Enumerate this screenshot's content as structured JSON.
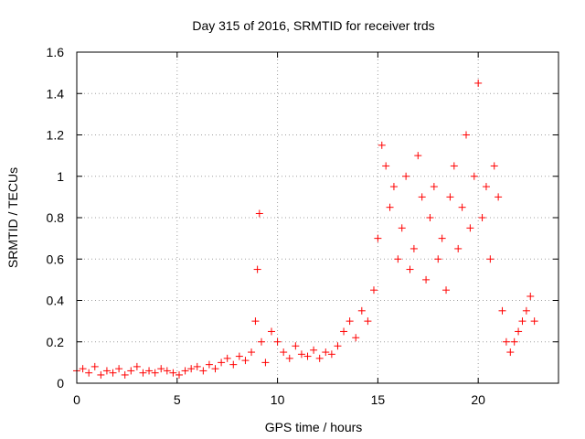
{
  "chart_data": {
    "type": "scatter",
    "title": "Day 315 of 2016, SRMTID for receiver trds",
    "xlabel": "GPS time / hours",
    "ylabel": "SRMTID / TECUs",
    "xlim": [
      0,
      24
    ],
    "ylim": [
      0,
      1.6
    ],
    "xticks": [
      0,
      5,
      10,
      15,
      20
    ],
    "yticks": [
      0,
      0.2,
      0.4,
      0.6,
      0.8,
      1,
      1.2,
      1.4,
      1.6
    ],
    "xtick_labels": [
      "0",
      "5",
      "10",
      "15",
      "20"
    ],
    "ytick_labels": [
      "0",
      "0.2",
      "0.4",
      "0.6",
      "0.8",
      "1",
      "1.2",
      "1.4",
      "1.6"
    ],
    "grid": true,
    "marker": "+",
    "color": "#ff0000",
    "series": [
      {
        "name": "SRMTID",
        "x": [
          0.0,
          0.3,
          0.6,
          0.9,
          1.2,
          1.5,
          1.8,
          2.1,
          2.4,
          2.7,
          3.0,
          3.3,
          3.6,
          3.9,
          4.2,
          4.5,
          4.8,
          5.1,
          5.4,
          5.7,
          6.0,
          6.3,
          6.6,
          6.9,
          7.2,
          7.5,
          7.8,
          8.1,
          8.4,
          8.7,
          8.9,
          9.0,
          9.1,
          9.2,
          9.4,
          9.7,
          10.0,
          10.3,
          10.6,
          10.9,
          11.2,
          11.5,
          11.8,
          12.1,
          12.4,
          12.7,
          13.0,
          13.3,
          13.6,
          13.9,
          14.2,
          14.5,
          14.8,
          15.0,
          15.2,
          15.4,
          15.6,
          15.8,
          16.0,
          16.2,
          16.4,
          16.6,
          16.8,
          17.0,
          17.2,
          17.4,
          17.6,
          17.8,
          18.0,
          18.2,
          18.4,
          18.6,
          18.8,
          19.0,
          19.2,
          19.4,
          19.6,
          19.8,
          20.0,
          20.2,
          20.4,
          20.6,
          20.8,
          21.0,
          21.2,
          21.4,
          21.6,
          21.8,
          22.0,
          22.2,
          22.4,
          22.6,
          22.8
        ],
        "y": [
          0.06,
          0.07,
          0.05,
          0.08,
          0.04,
          0.06,
          0.05,
          0.07,
          0.04,
          0.06,
          0.08,
          0.05,
          0.06,
          0.05,
          0.07,
          0.06,
          0.05,
          0.04,
          0.06,
          0.07,
          0.08,
          0.06,
          0.09,
          0.07,
          0.1,
          0.12,
          0.09,
          0.13,
          0.11,
          0.15,
          0.3,
          0.55,
          0.82,
          0.2,
          0.1,
          0.25,
          0.2,
          0.15,
          0.12,
          0.18,
          0.14,
          0.13,
          0.16,
          0.12,
          0.15,
          0.14,
          0.18,
          0.25,
          0.3,
          0.22,
          0.35,
          0.3,
          0.45,
          0.7,
          1.15,
          1.05,
          0.85,
          0.95,
          0.6,
          0.75,
          1.0,
          0.55,
          0.65,
          1.1,
          0.9,
          0.5,
          0.8,
          0.95,
          0.6,
          0.7,
          0.45,
          0.9,
          1.05,
          0.65,
          0.85,
          1.2,
          0.75,
          1.0,
          1.45,
          0.8,
          0.95,
          0.6,
          1.05,
          0.9,
          0.35,
          0.2,
          0.15,
          0.2,
          0.25,
          0.3,
          0.35,
          0.42,
          0.3
        ]
      }
    ]
  }
}
